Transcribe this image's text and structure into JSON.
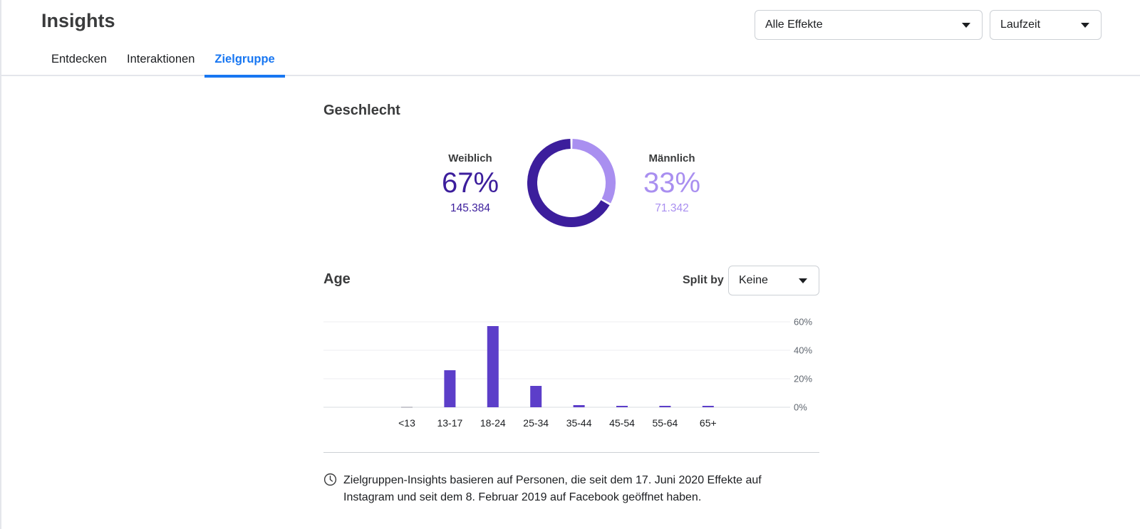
{
  "header": {
    "title": "Insights",
    "tabs": [
      {
        "label": "Entdecken",
        "active": false
      },
      {
        "label": "Interaktionen",
        "active": false
      },
      {
        "label": "Zielgruppe",
        "active": true
      }
    ],
    "effects_select": {
      "value": "Alle Effekte"
    },
    "time_select": {
      "value": "Laufzeit"
    }
  },
  "gender": {
    "title": "Geschlecht",
    "female": {
      "label": "Weiblich",
      "percent": "67%",
      "count": "145.384",
      "share": 0.67,
      "color": "#3c1e9c"
    },
    "male": {
      "label": "Männlich",
      "percent": "33%",
      "count": "71.342",
      "share": 0.33,
      "color": "#a98ff0"
    }
  },
  "age": {
    "title": "Age",
    "split_label": "Split by",
    "split_select": {
      "value": "Keine"
    }
  },
  "chart_data": {
    "type": "bar",
    "categories": [
      "<13",
      "13-17",
      "18-24",
      "25-34",
      "35-44",
      "45-54",
      "55-64",
      "65+"
    ],
    "values": [
      0.5,
      26,
      57,
      15,
      1.5,
      1,
      1,
      1
    ],
    "yticks": [
      "60%",
      "40%",
      "20%",
      "0%"
    ],
    "ylim": [
      0,
      60
    ],
    "grid": true,
    "bar_color": "#5c3ec9",
    "muted_color": "#c9c9d1"
  },
  "footnote": "Zielgruppen-Insights basieren auf Personen, die seit dem 17. Juni 2020 Effekte auf Instagram und seit dem 8. Februar 2019 auf Facebook geöffnet haben."
}
